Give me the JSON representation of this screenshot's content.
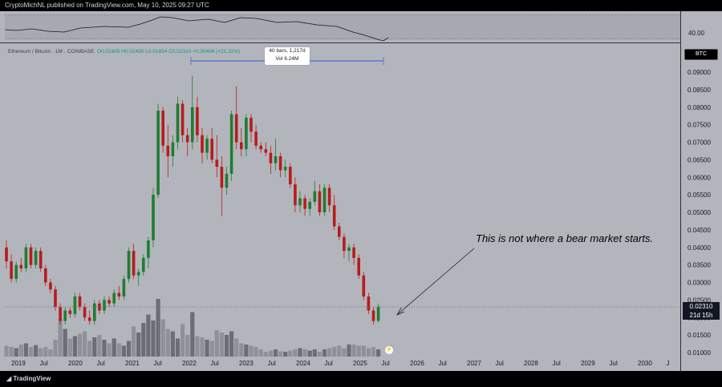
{
  "header": {
    "publish_line": "CryptoMichNL published on TradingView.com, May 10, 2025 09:27 UTC"
  },
  "footer": {
    "logo_label": "TradingView"
  },
  "symbol_info": {
    "name": "Ethereum / Bitcoin · 1M · COINBASE",
    "ohlc": "O0.01905  H0.02400  L0.01854  C0.02310  +0.00406 (+21.32%)"
  },
  "measure_tool": {
    "line1": "40 bars, 1,217d",
    "line2": "Vol 6.24M"
  },
  "ticker_badge": "BTC",
  "price_tag": {
    "price": "0.02310",
    "countdown": "21d 15h"
  },
  "rsi": {
    "level_label": "40.00"
  },
  "annotation": "This is not where a bear market starts.",
  "flash_icon": "lightning-icon",
  "colors": {
    "up": "#1e7d32",
    "down": "#b71c1c",
    "volume": "#5d6069",
    "background": "#b3b5bc",
    "measure": "#5b7bd5"
  },
  "chart_data": {
    "type": "candlestick",
    "title": "Ethereum / Bitcoin · 1M · COINBASE",
    "y_ticks": [
      "0.09000",
      "0.08500",
      "0.08000",
      "0.07500",
      "0.07000",
      "0.06500",
      "0.06000",
      "0.05500",
      "0.05000",
      "0.04500",
      "0.04000",
      "0.03500",
      "0.03000",
      "0.02500",
      "0.02000",
      "0.01500",
      "0.01000"
    ],
    "x_ticks": [
      "2019",
      "Jul",
      "2020",
      "Jul",
      "2021",
      "Jul",
      "2022",
      "Jul",
      "2023",
      "Jul",
      "2024",
      "Jul",
      "2025",
      "Jul",
      "2026",
      "Jul",
      "2027",
      "Jul",
      "2028",
      "Jul",
      "2029",
      "Jul",
      "2030",
      "J"
    ],
    "ylim": [
      0.0094,
      0.0955
    ],
    "last_price": 0.0231,
    "candles": [
      [
        0.04,
        0.042,
        0.034,
        0.036
      ],
      [
        0.036,
        0.038,
        0.03,
        0.031
      ],
      [
        0.031,
        0.036,
        0.03,
        0.035
      ],
      [
        0.035,
        0.037,
        0.033,
        0.034
      ],
      [
        0.034,
        0.041,
        0.033,
        0.04
      ],
      [
        0.04,
        0.041,
        0.034,
        0.035
      ],
      [
        0.035,
        0.04,
        0.034,
        0.039
      ],
      [
        0.039,
        0.04,
        0.033,
        0.034
      ],
      [
        0.034,
        0.035,
        0.029,
        0.03
      ],
      [
        0.03,
        0.031,
        0.027,
        0.028
      ],
      [
        0.028,
        0.029,
        0.022,
        0.023
      ],
      [
        0.023,
        0.024,
        0.018,
        0.019
      ],
      [
        0.019,
        0.023,
        0.018,
        0.022
      ],
      [
        0.022,
        0.023,
        0.02,
        0.021
      ],
      [
        0.021,
        0.027,
        0.02,
        0.026
      ],
      [
        0.026,
        0.027,
        0.022,
        0.023
      ],
      [
        0.023,
        0.024,
        0.019,
        0.02
      ],
      [
        0.02,
        0.022,
        0.018,
        0.019
      ],
      [
        0.019,
        0.025,
        0.018,
        0.024
      ],
      [
        0.024,
        0.025,
        0.021,
        0.022
      ],
      [
        0.022,
        0.026,
        0.021,
        0.025
      ],
      [
        0.025,
        0.026,
        0.023,
        0.024
      ],
      [
        0.024,
        0.028,
        0.023,
        0.027
      ],
      [
        0.027,
        0.029,
        0.025,
        0.026
      ],
      [
        0.026,
        0.032,
        0.025,
        0.031
      ],
      [
        0.031,
        0.04,
        0.03,
        0.039
      ],
      [
        0.039,
        0.041,
        0.031,
        0.032
      ],
      [
        0.032,
        0.034,
        0.029,
        0.033
      ],
      [
        0.033,
        0.038,
        0.032,
        0.037
      ],
      [
        0.037,
        0.043,
        0.034,
        0.042
      ],
      [
        0.042,
        0.057,
        0.04,
        0.055
      ],
      [
        0.055,
        0.081,
        0.054,
        0.079
      ],
      [
        0.079,
        0.08,
        0.067,
        0.069
      ],
      [
        0.069,
        0.075,
        0.06,
        0.066
      ],
      [
        0.066,
        0.072,
        0.063,
        0.07
      ],
      [
        0.07,
        0.083,
        0.068,
        0.081
      ],
      [
        0.081,
        0.082,
        0.07,
        0.072
      ],
      [
        0.072,
        0.074,
        0.066,
        0.07
      ],
      [
        0.07,
        0.089,
        0.068,
        0.08
      ],
      [
        0.08,
        0.083,
        0.07,
        0.072
      ],
      [
        0.072,
        0.074,
        0.064,
        0.067
      ],
      [
        0.067,
        0.072,
        0.065,
        0.071
      ],
      [
        0.071,
        0.074,
        0.064,
        0.065
      ],
      [
        0.065,
        0.072,
        0.06,
        0.063
      ],
      [
        0.063,
        0.066,
        0.049,
        0.057
      ],
      [
        0.057,
        0.063,
        0.055,
        0.061
      ],
      [
        0.061,
        0.079,
        0.059,
        0.078
      ],
      [
        0.078,
        0.086,
        0.068,
        0.07
      ],
      [
        0.07,
        0.074,
        0.066,
        0.068
      ],
      [
        0.068,
        0.078,
        0.066,
        0.077
      ],
      [
        0.077,
        0.078,
        0.07,
        0.073
      ],
      [
        0.073,
        0.075,
        0.068,
        0.069
      ],
      [
        0.069,
        0.07,
        0.067,
        0.068
      ],
      [
        0.068,
        0.07,
        0.066,
        0.067
      ],
      [
        0.067,
        0.069,
        0.061,
        0.064
      ],
      [
        0.064,
        0.071,
        0.062,
        0.066
      ],
      [
        0.066,
        0.067,
        0.06,
        0.062
      ],
      [
        0.062,
        0.065,
        0.06,
        0.063
      ],
      [
        0.063,
        0.064,
        0.057,
        0.058
      ],
      [
        0.058,
        0.06,
        0.05,
        0.052
      ],
      [
        0.052,
        0.056,
        0.05,
        0.054
      ],
      [
        0.054,
        0.055,
        0.049,
        0.051
      ],
      [
        0.051,
        0.054,
        0.049,
        0.053
      ],
      [
        0.053,
        0.059,
        0.052,
        0.056
      ],
      [
        0.056,
        0.058,
        0.049,
        0.05
      ],
      [
        0.05,
        0.058,
        0.049,
        0.057
      ],
      [
        0.057,
        0.058,
        0.05,
        0.052
      ],
      [
        0.052,
        0.055,
        0.045,
        0.046
      ],
      [
        0.046,
        0.047,
        0.042,
        0.043
      ],
      [
        0.043,
        0.044,
        0.037,
        0.039
      ],
      [
        0.039,
        0.041,
        0.036,
        0.04
      ],
      [
        0.04,
        0.041,
        0.035,
        0.037
      ],
      [
        0.037,
        0.038,
        0.031,
        0.032
      ],
      [
        0.032,
        0.033,
        0.025,
        0.026
      ],
      [
        0.026,
        0.027,
        0.021,
        0.022
      ],
      [
        0.022,
        0.023,
        0.018,
        0.019
      ],
      [
        0.01905,
        0.024,
        0.01854,
        0.0231
      ]
    ],
    "volume_rel": [
      0.18,
      0.16,
      0.14,
      0.2,
      0.22,
      0.16,
      0.19,
      0.14,
      0.16,
      0.12,
      0.28,
      0.62,
      0.46,
      0.3,
      0.34,
      0.38,
      0.42,
      0.26,
      0.32,
      0.36,
      0.28,
      0.22,
      0.3,
      0.22,
      0.18,
      0.26,
      0.5,
      0.4,
      0.56,
      0.7,
      0.6,
      0.96,
      0.62,
      0.46,
      0.42,
      0.3,
      0.54,
      0.36,
      0.74,
      0.34,
      0.32,
      0.28,
      0.26,
      0.44,
      0.4,
      0.36,
      0.42,
      0.3,
      0.22,
      0.2,
      0.18,
      0.16,
      0.12,
      0.08,
      0.1,
      0.12,
      0.09,
      0.08,
      0.1,
      0.12,
      0.14,
      0.12,
      0.1,
      0.12,
      0.08,
      0.12,
      0.14,
      0.16,
      0.18,
      0.14,
      0.2,
      0.2,
      0.18,
      0.18,
      0.14,
      0.16,
      0.12
    ]
  }
}
